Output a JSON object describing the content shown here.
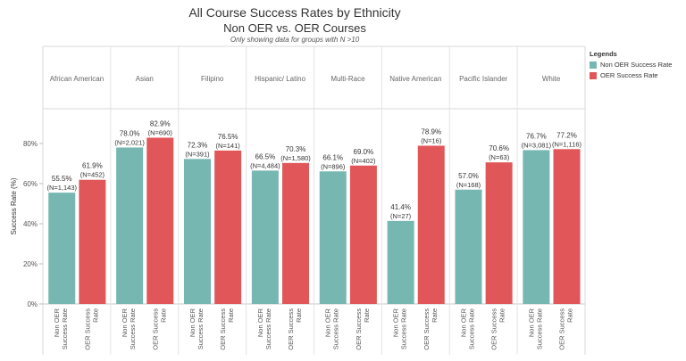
{
  "chart_data": {
    "type": "bar",
    "title": "All Course Success Rates by Ethnicity",
    "subtitle": "Non OER vs. OER Courses",
    "note": "Only showing data for groups with N >10",
    "ylabel": "Success Rate (%)",
    "ylim": [
      0,
      100
    ],
    "yticks": [
      "0%",
      "20%",
      "40%",
      "60%",
      "80%"
    ],
    "ytick_values": [
      0,
      20,
      40,
      60,
      80
    ],
    "bar_labels": [
      "Non OER Success Rate",
      "OER Success Rate"
    ],
    "groups": [
      {
        "name": "African American",
        "values": [
          55.5,
          61.9
        ],
        "labels": [
          "55.5%",
          "61.9%"
        ],
        "n": [
          "(N=1,143)",
          "(N=452)"
        ]
      },
      {
        "name": "Asian",
        "values": [
          78.0,
          82.9
        ],
        "labels": [
          "78.0%",
          "82.9%"
        ],
        "n": [
          "(N=2,021)",
          "(N=690)"
        ]
      },
      {
        "name": "Filipino",
        "values": [
          72.3,
          76.5
        ],
        "labels": [
          "72.3%",
          "76.5%"
        ],
        "n": [
          "(N=391)",
          "(N=141)"
        ]
      },
      {
        "name": "Hispanic/ Latino",
        "values": [
          66.5,
          70.3
        ],
        "labels": [
          "66.5%",
          "70.3%"
        ],
        "n": [
          "(N=4,484)",
          "(N=1,580)"
        ]
      },
      {
        "name": "Multi-Race",
        "values": [
          66.1,
          69.0
        ],
        "labels": [
          "66.1%",
          "69.0%"
        ],
        "n": [
          "(N=896)",
          "(N=402)"
        ]
      },
      {
        "name": "Native American",
        "values": [
          41.4,
          78.9
        ],
        "labels": [
          "41.4%",
          "78.9%"
        ],
        "n": [
          "(N=27)",
          "(N=16)"
        ]
      },
      {
        "name": "Pacific Islander",
        "values": [
          57.0,
          70.6
        ],
        "labels": [
          "57.0%",
          "70.6%"
        ],
        "n": [
          "(N=168)",
          "(N=63)"
        ]
      },
      {
        "name": "White",
        "values": [
          76.7,
          77.2
        ],
        "labels": [
          "76.7%",
          "77.2%"
        ],
        "n": [
          "(N=3,081)",
          "(N=1,116)"
        ]
      }
    ],
    "colors": [
      "#76b7b2",
      "#e15759"
    ],
    "legend": {
      "title": "Legends",
      "position": "top-right",
      "items": [
        "Non OER Success Rate",
        "OER Success Rate"
      ]
    }
  }
}
